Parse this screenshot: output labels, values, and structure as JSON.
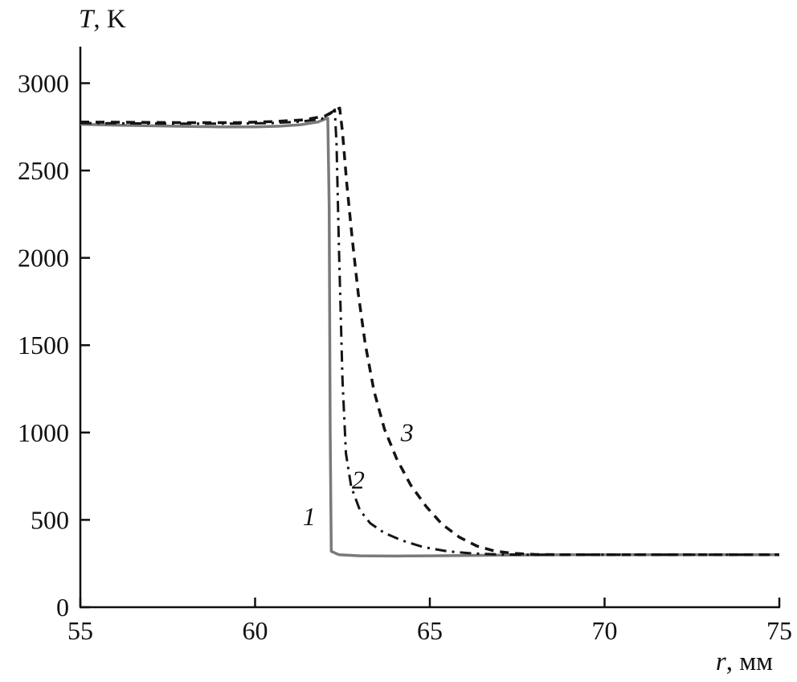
{
  "figure": {
    "y_axis_title_var": "T",
    "y_axis_title_rest": ", K",
    "x_axis_title_var": "r",
    "x_axis_title_rest": ", мм"
  },
  "chart_data": {
    "type": "line",
    "title": "",
    "xlabel": "r, мм",
    "ylabel": "T, K",
    "xlim": [
      55,
      75
    ],
    "ylim": [
      0,
      3200
    ],
    "xticks": [
      55,
      60,
      65,
      70,
      75
    ],
    "yticks": [
      0,
      500,
      1000,
      1500,
      2000,
      2500,
      3000
    ],
    "grid": false,
    "legend_position": "none (curves labeled inline with italic numerals 1, 2, 3)",
    "axis_color": "#111111",
    "series": [
      {
        "name": "1",
        "style": "solid",
        "color": "#7a7a7a",
        "width": 3.5,
        "dash": "",
        "points": [
          [
            55,
            2765
          ],
          [
            56,
            2760
          ],
          [
            57,
            2756
          ],
          [
            58,
            2753
          ],
          [
            59,
            2750
          ],
          [
            60,
            2750
          ],
          [
            60.7,
            2754
          ],
          [
            61.3,
            2762
          ],
          [
            61.8,
            2778
          ],
          [
            62.0,
            2795
          ],
          [
            62.08,
            2800
          ],
          [
            62.12,
            2300
          ],
          [
            62.15,
            1000
          ],
          [
            62.18,
            320
          ],
          [
            62.4,
            300
          ],
          [
            63,
            294
          ],
          [
            64,
            293
          ],
          [
            65,
            294
          ],
          [
            66,
            296
          ],
          [
            67.5,
            299
          ],
          [
            69,
            300
          ],
          [
            75,
            300
          ]
        ]
      },
      {
        "name": "2",
        "style": "dash-dot",
        "color": "#141414",
        "width": 3,
        "dash": "14 7 3 7",
        "points": [
          [
            55,
            2772
          ],
          [
            56.5,
            2770
          ],
          [
            58,
            2768
          ],
          [
            59.5,
            2768
          ],
          [
            60.5,
            2772
          ],
          [
            61.3,
            2780
          ],
          [
            61.9,
            2795
          ],
          [
            62.15,
            2825
          ],
          [
            62.28,
            2848
          ],
          [
            62.33,
            2650
          ],
          [
            62.4,
            2050
          ],
          [
            62.5,
            1300
          ],
          [
            62.6,
            880
          ],
          [
            62.75,
            690
          ],
          [
            63.0,
            555
          ],
          [
            63.3,
            480
          ],
          [
            63.7,
            425
          ],
          [
            64.2,
            382
          ],
          [
            64.8,
            345
          ],
          [
            65.5,
            320
          ],
          [
            66.2,
            308
          ],
          [
            67,
            302
          ],
          [
            68,
            300
          ],
          [
            70,
            300
          ],
          [
            75,
            300
          ]
        ]
      },
      {
        "name": "3",
        "style": "dashed",
        "color": "#141414",
        "width": 3.5,
        "dash": "11 8",
        "points": [
          [
            55,
            2778
          ],
          [
            56.5,
            2776
          ],
          [
            58,
            2774
          ],
          [
            59.5,
            2774
          ],
          [
            60.5,
            2780
          ],
          [
            61.4,
            2790
          ],
          [
            62.0,
            2812
          ],
          [
            62.3,
            2845
          ],
          [
            62.42,
            2858
          ],
          [
            62.5,
            2720
          ],
          [
            62.62,
            2430
          ],
          [
            62.78,
            2110
          ],
          [
            62.95,
            1800
          ],
          [
            63.15,
            1510
          ],
          [
            63.4,
            1240
          ],
          [
            63.7,
            1020
          ],
          [
            64.05,
            850
          ],
          [
            64.45,
            700
          ],
          [
            64.9,
            575
          ],
          [
            65.35,
            475
          ],
          [
            65.85,
            400
          ],
          [
            66.35,
            350
          ],
          [
            66.85,
            322
          ],
          [
            67.4,
            308
          ],
          [
            68,
            302
          ],
          [
            69,
            300
          ],
          [
            70.5,
            300
          ],
          [
            75,
            300
          ]
        ]
      }
    ],
    "annotations": [
      {
        "text": "1",
        "x": 61.55,
        "y": 470
      },
      {
        "text": "2",
        "x": 62.95,
        "y": 680
      },
      {
        "text": "3",
        "x": 64.35,
        "y": 950
      }
    ]
  }
}
